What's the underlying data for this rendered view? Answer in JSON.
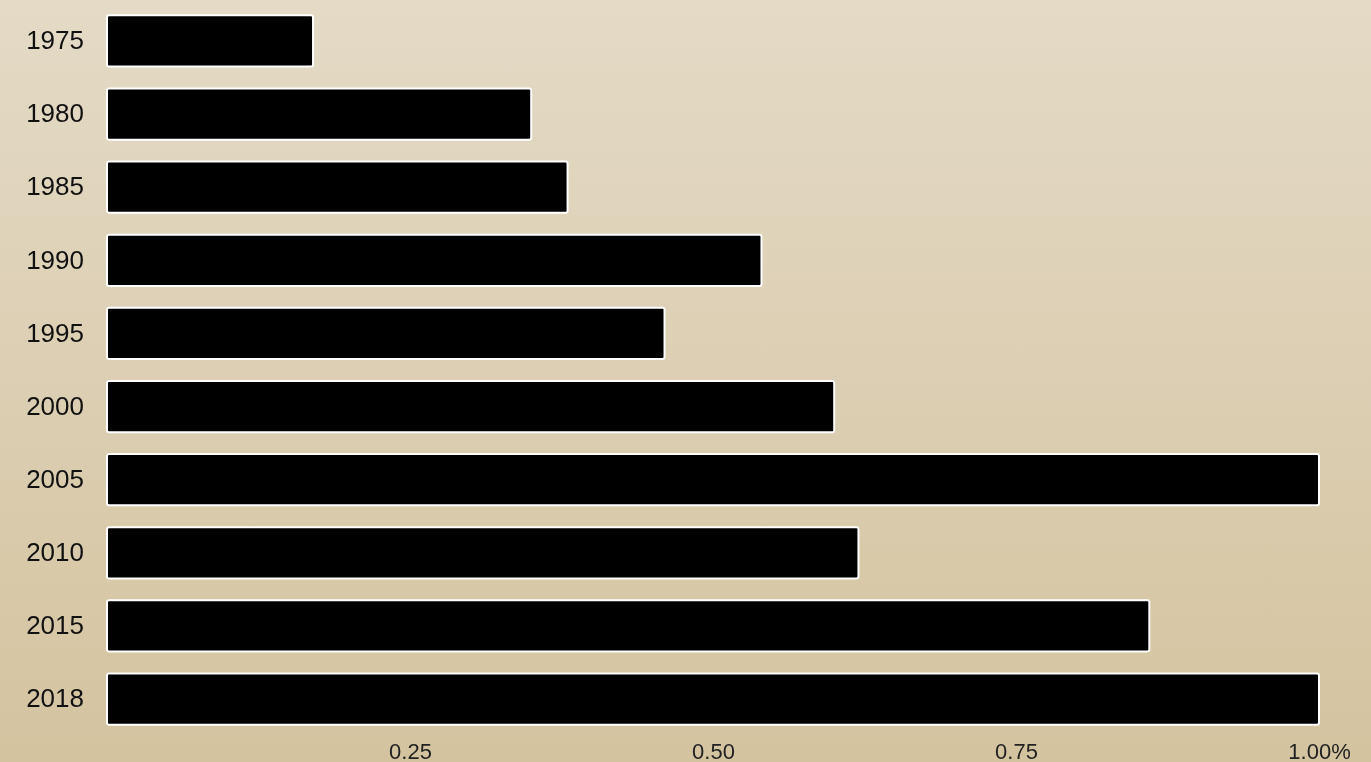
{
  "chart_data": {
    "type": "bar",
    "orientation": "horizontal",
    "categories": [
      "1975",
      "1980",
      "1985",
      "1990",
      "1995",
      "2000",
      "2005",
      "2010",
      "2015",
      "2018"
    ],
    "values": [
      0.17,
      0.35,
      0.38,
      0.54,
      0.46,
      0.6,
      1.0,
      0.62,
      0.86,
      1.0
    ],
    "color": "#000000",
    "xlim": [
      0,
      1
    ],
    "xticks": [
      0.25,
      {
        "value": 0.5,
        "label": "0.50"
      },
      {
        "value": 0.75,
        "label": "0.75"
      },
      {
        "value": 1,
        "label": "1.00%"
      }
    ]
  }
}
